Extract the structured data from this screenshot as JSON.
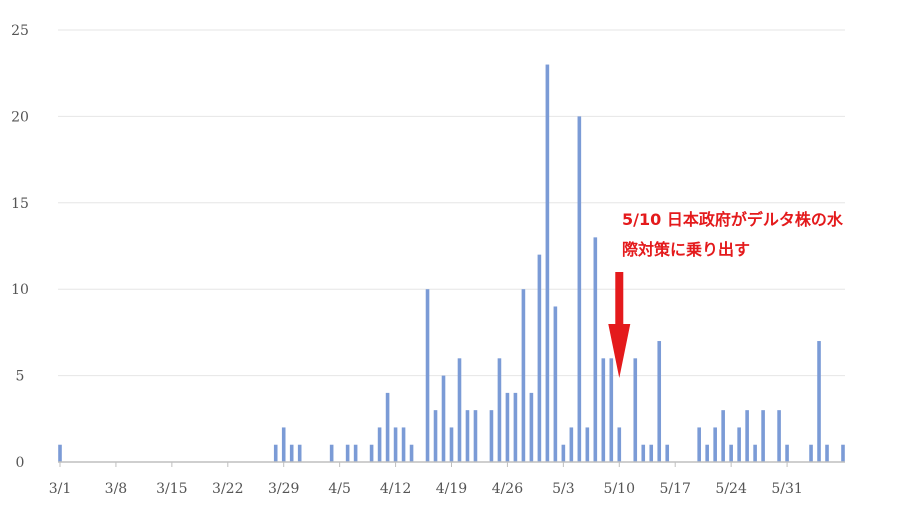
{
  "chart_data": {
    "type": "bar",
    "x_start": "3/1",
    "x_tick_labels": [
      "3/1",
      "3/8",
      "3/15",
      "3/22",
      "3/29",
      "4/5",
      "4/12",
      "4/19",
      "4/26",
      "5/3",
      "5/10",
      "5/17",
      "5/24",
      "5/31"
    ],
    "values": [
      1,
      0,
      0,
      0,
      0,
      0,
      0,
      0,
      0,
      0,
      0,
      0,
      0,
      0,
      0,
      0,
      0,
      0,
      0,
      0,
      0,
      0,
      0,
      0,
      0,
      0,
      0,
      1,
      2,
      1,
      1,
      0,
      0,
      0,
      1,
      0,
      1,
      1,
      0,
      1,
      2,
      4,
      2,
      2,
      1,
      0,
      10,
      3,
      5,
      2,
      6,
      3,
      3,
      0,
      3,
      6,
      4,
      4,
      10,
      4,
      12,
      23,
      9,
      1,
      2,
      20,
      2,
      13,
      6,
      6,
      2,
      0,
      6,
      1,
      1,
      7,
      1,
      0,
      0,
      0,
      2,
      1,
      2,
      3,
      1,
      2,
      3,
      1,
      3,
      0,
      3,
      1,
      0,
      0,
      1,
      7,
      1,
      0,
      1
    ],
    "ylim": [
      0,
      25
    ],
    "y_ticks": [
      0,
      5,
      10,
      15,
      20,
      25
    ],
    "grid": true,
    "bar_color": "#7b9bd6",
    "annotation": {
      "lines": [
        "5/10 日本政府がデルタ株の水",
        "際対策に乗り出す"
      ],
      "target_x": "5/10",
      "arrow_color": "#e41a1c"
    }
  }
}
